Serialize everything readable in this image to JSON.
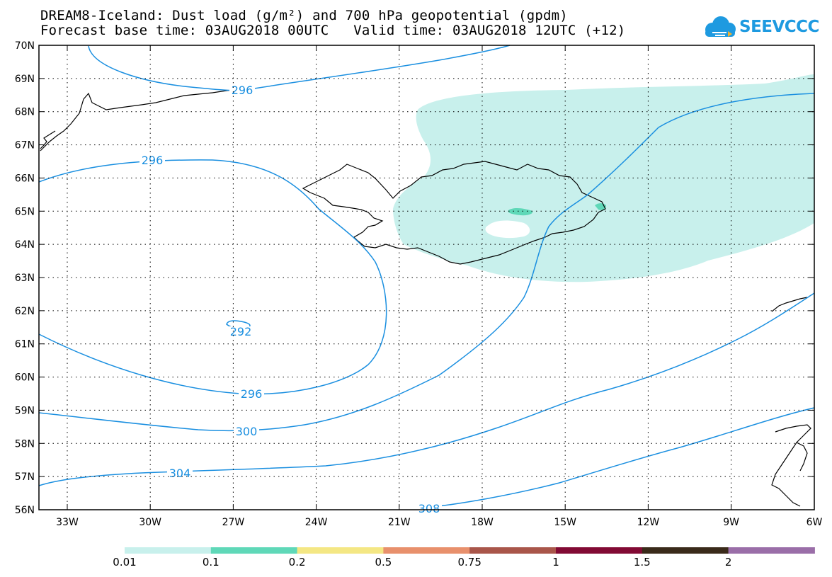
{
  "title": {
    "line1": "DREAM8-Iceland: Dust load (g/m²) and 700 hPa geopotential (gpdm)",
    "line2": "Forecast base time: 03AUG2018 00UTC   Valid time: 03AUG2018 12UTC (+12)"
  },
  "logo": {
    "text": "SEEVCCC",
    "icon": "cloud-icon",
    "color": "#1e9ae0"
  },
  "map": {
    "lat_labels": [
      "70N",
      "69N",
      "68N",
      "67N",
      "66N",
      "65N",
      "64N",
      "63N",
      "62N",
      "61N",
      "60N",
      "59N",
      "58N",
      "57N",
      "56N"
    ],
    "lon_labels": [
      "33W",
      "30W",
      "27W",
      "24W",
      "21W",
      "18W",
      "15W",
      "12W",
      "9W",
      "6W"
    ],
    "contour_labels": [
      "296",
      "296",
      "292",
      "296",
      "300",
      "304",
      "308"
    ],
    "contour_color": "#1a8fe0",
    "dust_color": "#c8f0ec"
  },
  "legend": {
    "colors": [
      "#c8f0ec",
      "#5fd8b8",
      "#f4e784",
      "#e8906c",
      "#a9564a",
      "#820a34",
      "#3a2a1a",
      "#9a6ea8"
    ],
    "labels": [
      "0.01",
      "0.1",
      "0.2",
      "0.5",
      "0.75",
      "1",
      "1.5",
      "2"
    ]
  }
}
